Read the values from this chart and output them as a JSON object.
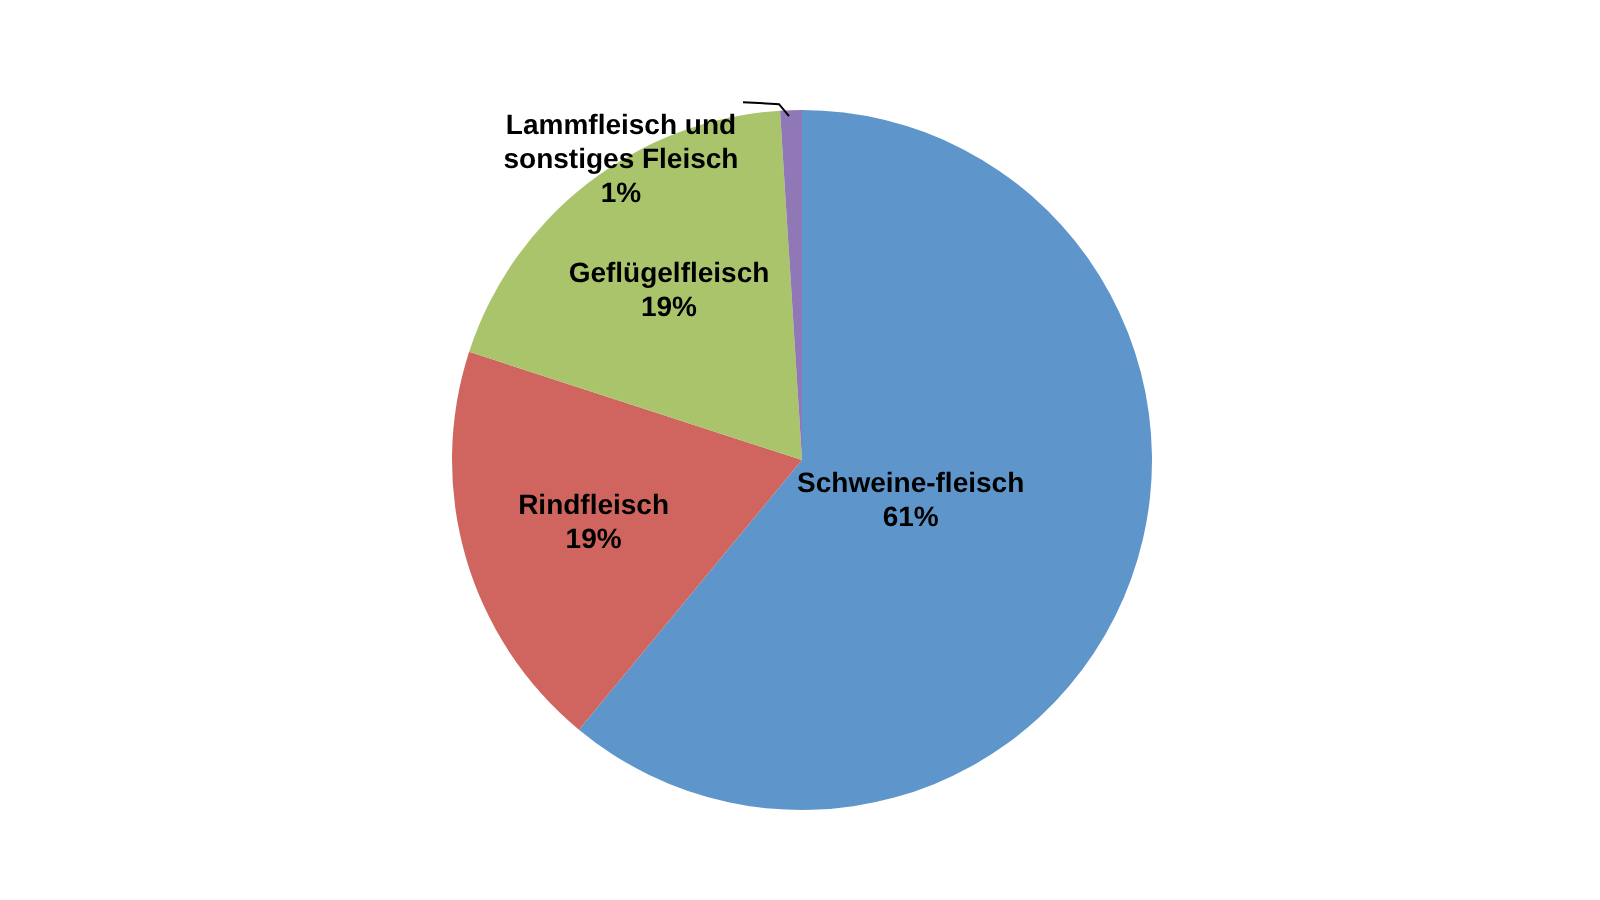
{
  "chart_data": {
    "type": "pie",
    "categories": [
      "Schweine-fleisch",
      "Rindfleisch",
      "Geflügelfleisch",
      "Lammfleisch und sonstiges Fleisch"
    ],
    "values": [
      61,
      19,
      19,
      1
    ],
    "value_labels": [
      "61%",
      "19%",
      "19%",
      "1%"
    ],
    "colors": [
      "#5e96cb",
      "#cf655e",
      "#a9c46b",
      "#8f78b5"
    ]
  }
}
